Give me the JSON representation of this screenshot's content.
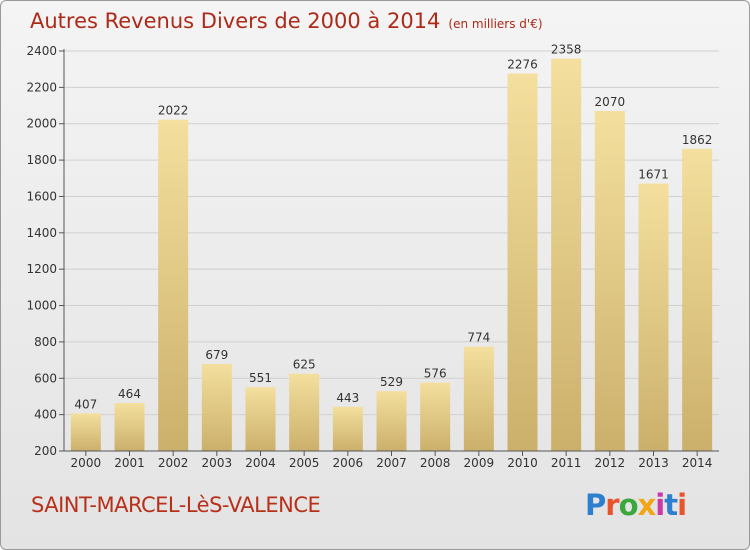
{
  "chart_data": {
    "type": "bar",
    "title": "Autres Revenus Divers de 2000 à 2014",
    "unit": "(en milliers d'€)",
    "categories": [
      "2000",
      "2001",
      "2002",
      "2003",
      "2004",
      "2005",
      "2006",
      "2007",
      "2008",
      "2009",
      "2010",
      "2011",
      "2012",
      "2013",
      "2014"
    ],
    "values": [
      407,
      464,
      2022,
      679,
      551,
      625,
      443,
      529,
      576,
      774,
      2276,
      2358,
      2070,
      1671,
      1862
    ],
    "ylim": [
      200,
      2400
    ],
    "yticks": [
      200,
      400,
      600,
      800,
      1000,
      1200,
      1400,
      1600,
      1800,
      2000,
      2200,
      2400
    ],
    "grid": true,
    "bar_color_top": "#f4df9e",
    "bar_color_bottom": "#cbb06b"
  },
  "footer": {
    "commune": "SAINT-MARCEL-LèS-VALENCE",
    "logo": "Proxiti",
    "logo_colors": [
      "#2f7fd0",
      "#e8552c",
      "#3aa83a",
      "#f2a516",
      "#c83aa8",
      "#2f7fd0",
      "#e8552c"
    ]
  }
}
